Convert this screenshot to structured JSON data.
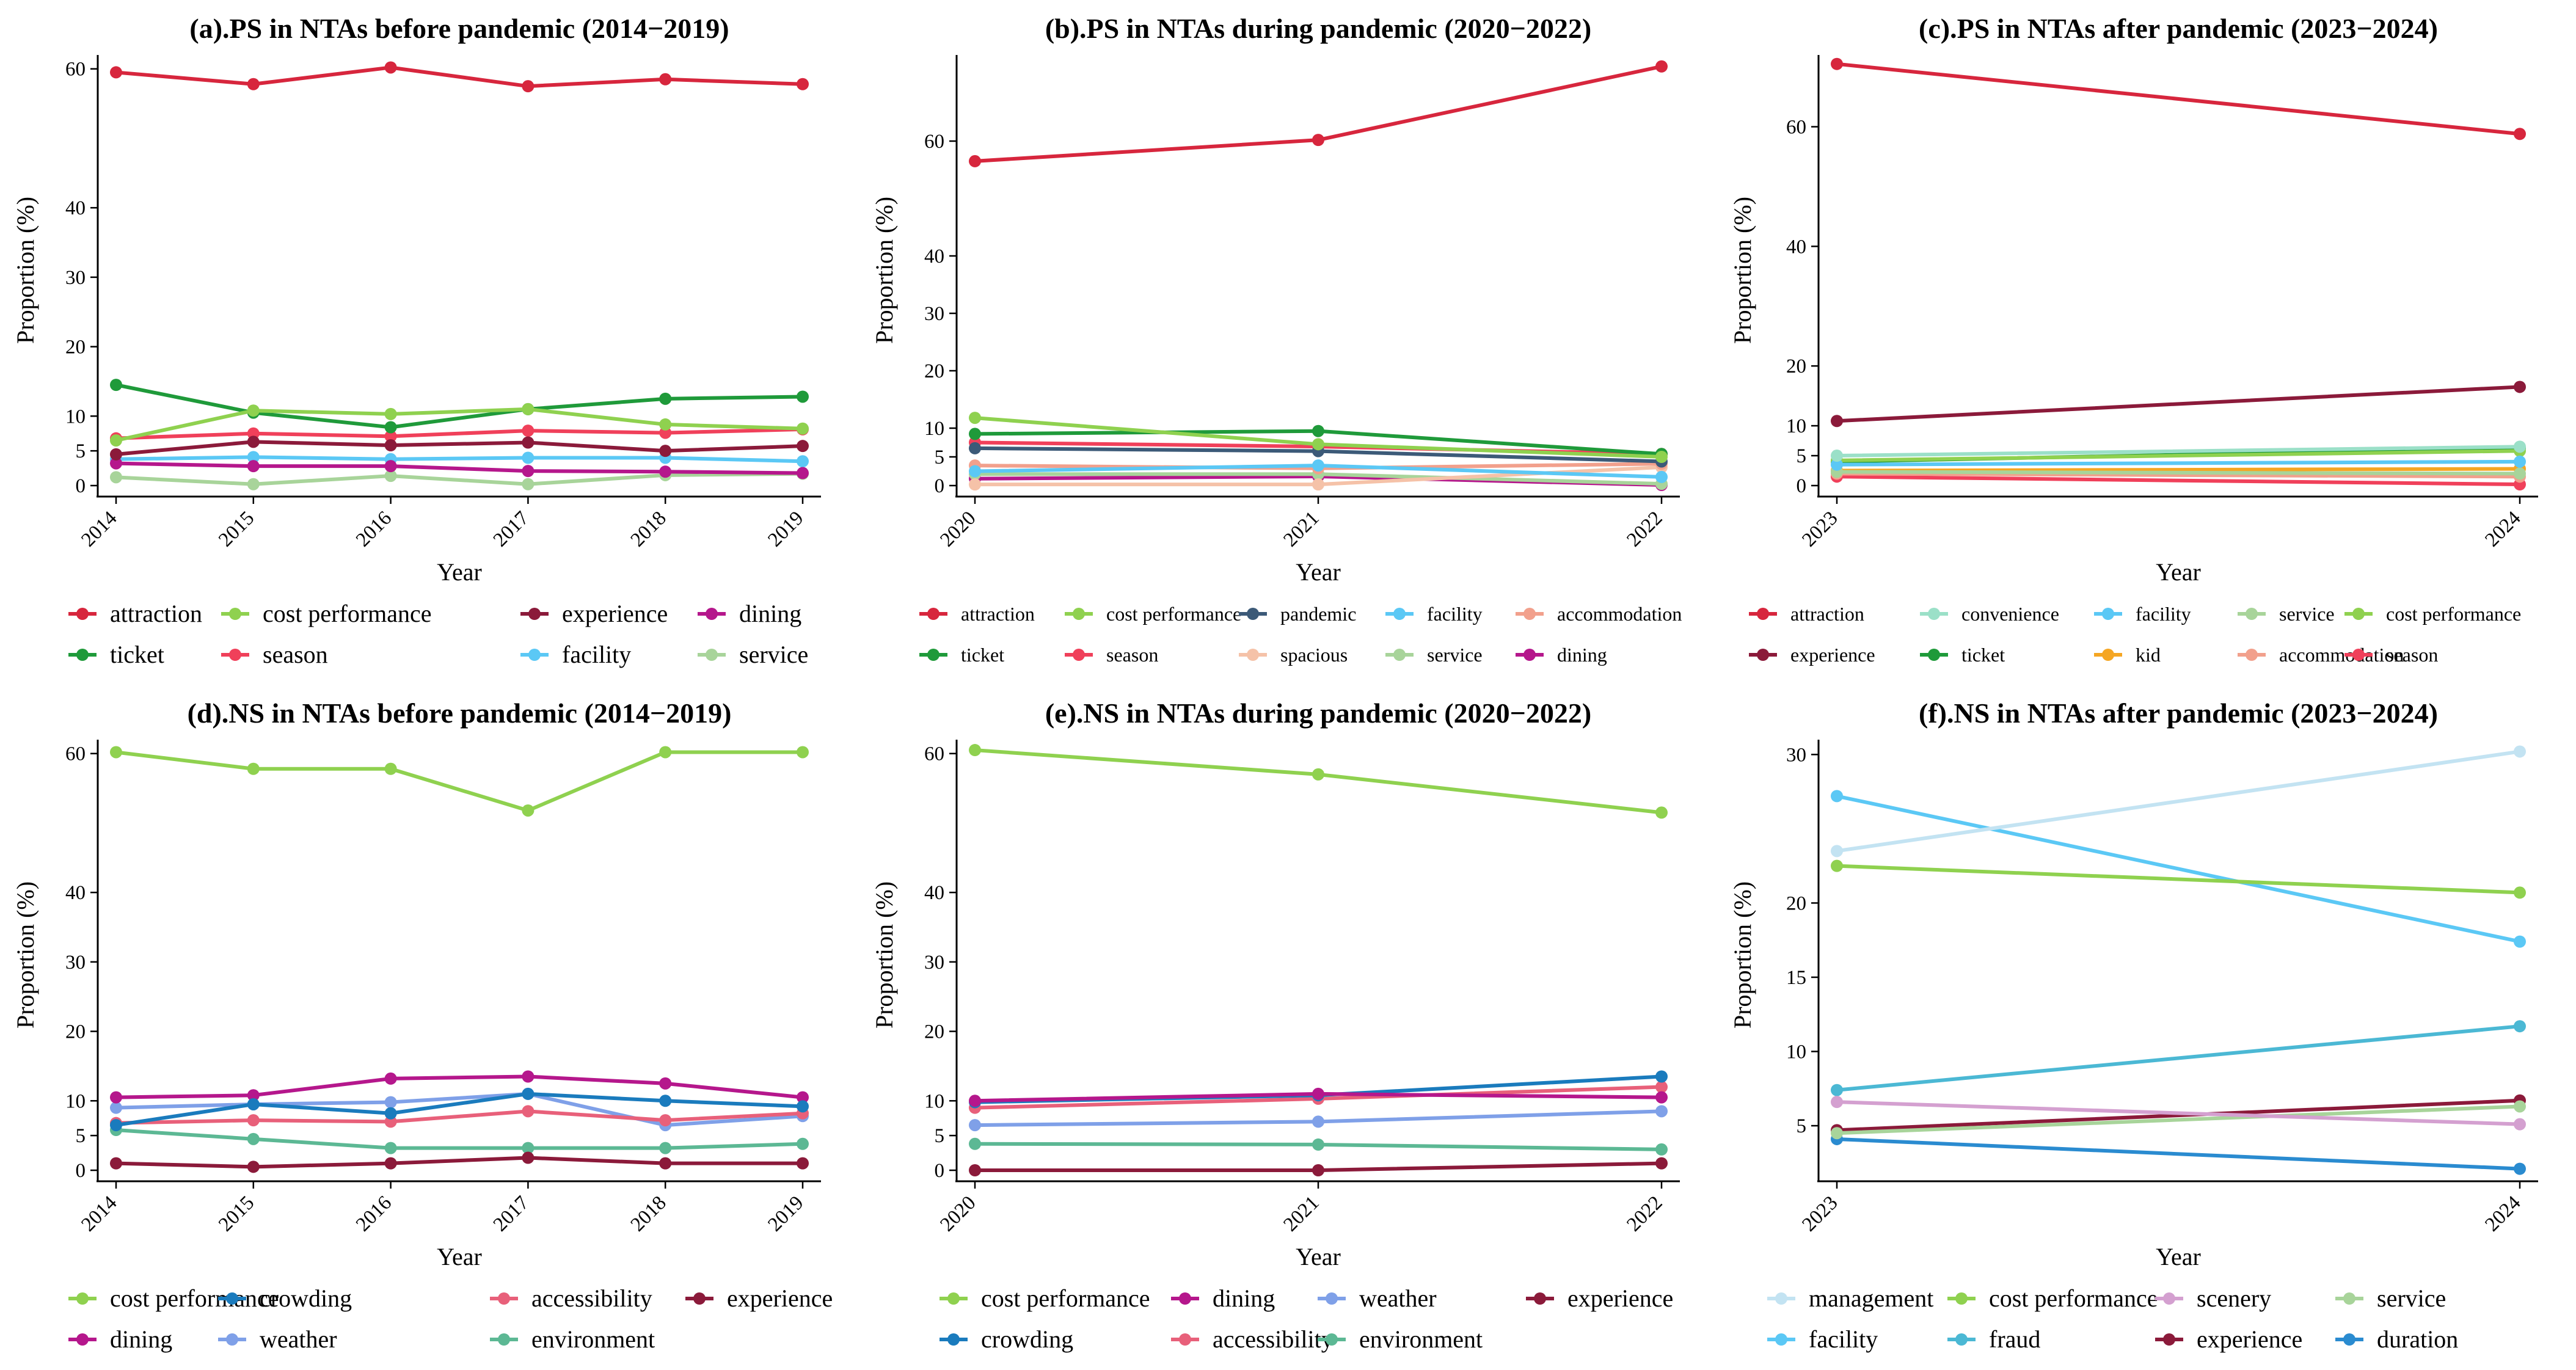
{
  "chart_data": [
    {
      "type": "line",
      "title": "(a).PS in NTAs before pandemic (2014−2019)",
      "xlabel": "Year",
      "ylabel": "Proportion (%)",
      "x": [
        "2014",
        "2015",
        "2016",
        "2017",
        "2018",
        "2019"
      ],
      "y_ticks": [
        0,
        5,
        10,
        20,
        30,
        40,
        60
      ],
      "ylim": [
        0,
        62
      ],
      "series": [
        {
          "name": "attraction",
          "color": "#d7263d",
          "values": [
            59.5,
            57.8,
            60.2,
            57.5,
            58.5,
            57.8
          ]
        },
        {
          "name": "cost performance",
          "color": "#8fd14f",
          "values": [
            6.5,
            10.8,
            10.3,
            11.0,
            8.8,
            8.2
          ]
        },
        {
          "name": "experience",
          "color": "#8b1a3a",
          "values": [
            4.5,
            6.3,
            5.8,
            6.2,
            5.0,
            5.7
          ]
        },
        {
          "name": "dining",
          "color": "#b5178c",
          "values": [
            3.2,
            2.8,
            2.8,
            2.1,
            2.0,
            1.8
          ]
        },
        {
          "name": "ticket",
          "color": "#1f9a3a",
          "values": [
            14.5,
            10.5,
            8.4,
            11.0,
            12.5,
            12.8
          ]
        },
        {
          "name": "season",
          "color": "#f0405a",
          "values": [
            6.8,
            7.5,
            7.1,
            7.9,
            7.6,
            8.1
          ]
        },
        {
          "name": "facility",
          "color": "#5bc8f5",
          "values": [
            3.8,
            4.1,
            3.8,
            4.0,
            4.0,
            3.5
          ]
        },
        {
          "name": "service",
          "color": "#a8d49a",
          "values": [
            1.2,
            0.2,
            1.4,
            0.2,
            1.5,
            1.7
          ]
        }
      ],
      "legend": [
        "attraction",
        "cost performance",
        "experience",
        "dining",
        "ticket",
        "season",
        "facility",
        "service"
      ]
    },
    {
      "type": "line",
      "title": "(b).PS in NTAs during pandemic (2020−2022)",
      "xlabel": "Year",
      "ylabel": "Proportion (%)",
      "x": [
        "2020",
        "2021",
        "2022"
      ],
      "y_ticks": [
        0,
        5,
        10,
        20,
        30,
        40,
        60
      ],
      "ylim": [
        0,
        75
      ],
      "series": [
        {
          "name": "attraction",
          "color": "#d7263d",
          "values": [
            56.5,
            60.2,
            73.0
          ]
        },
        {
          "name": "cost performance",
          "color": "#8fd14f",
          "values": [
            11.8,
            7.2,
            5.0
          ]
        },
        {
          "name": "pandemic",
          "color": "#3c5a78",
          "values": [
            6.5,
            6.0,
            4.2
          ]
        },
        {
          "name": "facility",
          "color": "#5bc8f5",
          "values": [
            2.5,
            3.5,
            1.5
          ]
        },
        {
          "name": "accommodation",
          "color": "#f2a08c",
          "values": [
            3.5,
            3.0,
            3.8
          ]
        },
        {
          "name": "ticket",
          "color": "#1f9a3a",
          "values": [
            9.0,
            9.5,
            5.5
          ]
        },
        {
          "name": "season",
          "color": "#f0405a",
          "values": [
            7.5,
            6.8,
            5.5
          ]
        },
        {
          "name": "spacious",
          "color": "#f5c2a8",
          "values": [
            0.2,
            0.2,
            3.2
          ]
        },
        {
          "name": "service",
          "color": "#a8d49a",
          "values": [
            2.0,
            2.0,
            0.3
          ]
        },
        {
          "name": "dining",
          "color": "#b5178c",
          "values": [
            1.2,
            1.6,
            0.1
          ]
        }
      ],
      "legend": [
        "attraction",
        "cost performance",
        "pandemic",
        "facility",
        "accommodation",
        "ticket",
        "season",
        "spacious",
        "service",
        "dining"
      ]
    },
    {
      "type": "line",
      "title": "(c).PS in NTAs after pandemic (2023−2024)",
      "xlabel": "Year",
      "ylabel": "Proportion (%)",
      "x": [
        "2023",
        "2024"
      ],
      "y_ticks": [
        0,
        5,
        10,
        20,
        40,
        60
      ],
      "ylim": [
        0,
        72
      ],
      "series": [
        {
          "name": "attraction",
          "color": "#d7263d",
          "values": [
            70.5,
            58.8
          ]
        },
        {
          "name": "convenience",
          "color": "#9be0c8",
          "values": [
            5.0,
            6.5
          ]
        },
        {
          "name": "facility",
          "color": "#5bc8f5",
          "values": [
            3.5,
            4.0
          ]
        },
        {
          "name": "service",
          "color": "#a8d49a",
          "values": [
            2.3,
            2.0
          ]
        },
        {
          "name": "cost performance",
          "color": "#8fd14f",
          "values": [
            4.2,
            5.8
          ]
        },
        {
          "name": "experience",
          "color": "#8b1a3a",
          "values": [
            10.8,
            16.5
          ]
        },
        {
          "name": "ticket",
          "color": "#1f9a3a",
          "values": [
            4.0,
            6.3
          ]
        },
        {
          "name": "kid",
          "color": "#f5a623",
          "values": [
            2.5,
            2.8
          ]
        },
        {
          "name": "accommodation",
          "color": "#f2a08c",
          "values": [
            2.0,
            1.5
          ]
        },
        {
          "name": "season",
          "color": "#f0405a",
          "values": [
            1.5,
            0.2
          ]
        }
      ],
      "legend": [
        "attraction",
        "convenience",
        "facility",
        "service",
        "cost performance",
        "experience",
        "ticket",
        "kid",
        "accommodation",
        "season"
      ]
    },
    {
      "type": "line",
      "title": "(d).NS in NTAs before pandemic (2014−2019)",
      "xlabel": "Year",
      "ylabel": "Proportion (%)",
      "x": [
        "2014",
        "2015",
        "2016",
        "2017",
        "2018",
        "2019"
      ],
      "y_ticks": [
        0,
        5,
        10,
        20,
        30,
        40,
        60
      ],
      "ylim": [
        0,
        62
      ],
      "series": [
        {
          "name": "cost performance",
          "color": "#8fd14f",
          "values": [
            60.2,
            57.8,
            57.8,
            51.8,
            60.2,
            60.2
          ]
        },
        {
          "name": "crowding",
          "color": "#1a7bbd",
          "values": [
            6.5,
            9.5,
            8.2,
            11.0,
            10.0,
            9.2
          ]
        },
        {
          "name": "accessibility",
          "color": "#e8607a",
          "values": [
            6.8,
            7.2,
            7.0,
            8.5,
            7.2,
            8.2
          ]
        },
        {
          "name": "experience",
          "color": "#8b1a3a",
          "values": [
            1.0,
            0.5,
            1.0,
            1.8,
            1.0,
            1.0
          ]
        },
        {
          "name": "dining",
          "color": "#b5178c",
          "values": [
            10.5,
            10.8,
            13.2,
            13.5,
            12.5,
            10.5
          ]
        },
        {
          "name": "weather",
          "color": "#7fa0e8",
          "values": [
            9.0,
            9.5,
            9.8,
            11.0,
            6.5,
            7.8
          ]
        },
        {
          "name": "environment",
          "color": "#5cb894",
          "values": [
            5.8,
            4.5,
            3.2,
            3.2,
            3.2,
            3.8
          ]
        }
      ],
      "legend": [
        "cost performance",
        "crowding",
        "accessibility",
        "experience",
        "dining",
        "weather",
        "environment"
      ]
    },
    {
      "type": "line",
      "title": "(e).NS in NTAs during pandemic (2020−2022)",
      "xlabel": "Year",
      "ylabel": "Proportion (%)",
      "x": [
        "2020",
        "2021",
        "2022"
      ],
      "y_ticks": [
        0,
        5,
        10,
        20,
        30,
        40,
        60
      ],
      "ylim": [
        0,
        62
      ],
      "series": [
        {
          "name": "cost performance",
          "color": "#8fd14f",
          "values": [
            60.5,
            57.0,
            51.5
          ]
        },
        {
          "name": "dining",
          "color": "#b5178c",
          "values": [
            10.0,
            11.0,
            10.5
          ]
        },
        {
          "name": "weather",
          "color": "#7fa0e8",
          "values": [
            6.5,
            7.0,
            8.5
          ]
        },
        {
          "name": "experience",
          "color": "#8b1a3a",
          "values": [
            0.0,
            0.0,
            1.0
          ]
        },
        {
          "name": "crowding",
          "color": "#1a7bbd",
          "values": [
            9.8,
            10.8,
            13.5
          ]
        },
        {
          "name": "accessibility",
          "color": "#e8607a",
          "values": [
            9.0,
            10.3,
            12.0
          ]
        },
        {
          "name": "environment",
          "color": "#5cb894",
          "values": [
            3.8,
            3.7,
            3.0
          ]
        }
      ],
      "legend": [
        "cost performance",
        "dining",
        "weather",
        "experience",
        "crowding",
        "accessibility",
        "environment"
      ]
    },
    {
      "type": "line",
      "title": "(f).NS in NTAs after pandemic (2023−2024)",
      "xlabel": "Year",
      "ylabel": "Proportion (%)",
      "x": [
        "2023",
        "2024"
      ],
      "y_ticks": [
        5,
        10,
        15,
        20,
        30
      ],
      "ylim": [
        2,
        31
      ],
      "series": [
        {
          "name": "management",
          "color": "#c3e3f2",
          "values": [
            23.5,
            30.2
          ]
        },
        {
          "name": "cost performance",
          "color": "#8fd14f",
          "values": [
            22.5,
            20.7
          ]
        },
        {
          "name": "scenery",
          "color": "#d4a0d0",
          "values": [
            6.6,
            5.1
          ]
        },
        {
          "name": "service",
          "color": "#a8d49a",
          "values": [
            4.5,
            6.3
          ]
        },
        {
          "name": "facility",
          "color": "#5bc8f5",
          "values": [
            27.2,
            17.4
          ]
        },
        {
          "name": "fraud",
          "color": "#4bb8d4",
          "values": [
            7.4,
            11.7
          ]
        },
        {
          "name": "experience",
          "color": "#8b1a3a",
          "values": [
            4.7,
            6.7
          ]
        },
        {
          "name": "duration",
          "color": "#2a8bd0",
          "values": [
            4.1,
            2.1
          ]
        }
      ],
      "legend": [
        "management",
        "cost performance",
        "scenery",
        "service",
        "facility",
        "fraud",
        "experience",
        "duration"
      ]
    }
  ]
}
